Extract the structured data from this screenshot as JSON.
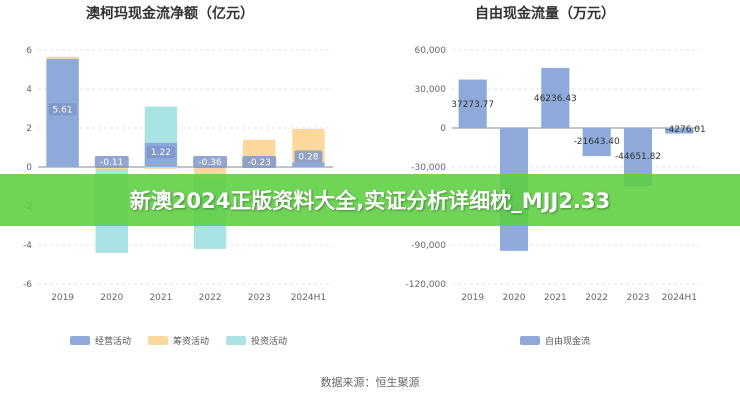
{
  "chart_data": [
    {
      "type": "bar",
      "title": "澳柯玛现金流净额（亿元）",
      "categories": [
        "2019",
        "2020",
        "2021",
        "2022",
        "2023",
        "2024H1"
      ],
      "ylim": [
        -6,
        6
      ],
      "yticks": [
        "6",
        "4",
        "2",
        "0",
        "-2",
        "-4",
        "-6"
      ],
      "grid": true,
      "legend_position": "bottom",
      "net_labels": [
        "5.61",
        "-0.11",
        "1.22",
        "-0.36",
        "-0.23",
        "0.28"
      ],
      "series": [
        {
          "name": "经营活动",
          "color": "#8eaadb",
          "values": [
            5.55,
            0.0,
            1.25,
            0.0,
            0.0,
            0.25
          ]
        },
        {
          "name": "筹资活动",
          "color": "#fcd89c",
          "values": [
            0.1,
            -0.1,
            -0.1,
            -0.6,
            1.4,
            1.7
          ]
        },
        {
          "name": "投资活动",
          "color": "#a9e3e3",
          "values": [
            0.0,
            -4.3,
            1.85,
            -3.6,
            0.0,
            0.0
          ]
        }
      ]
    },
    {
      "type": "bar",
      "title": "自由现金流量（万元）",
      "categories": [
        "2019",
        "2020",
        "2021",
        "2022",
        "2023",
        "2024H1"
      ],
      "ylim": [
        -120000,
        60000
      ],
      "yticks": [
        "60,000",
        "30,000",
        "0",
        "-30,000",
        "-60,000",
        "-90,000",
        "-120,000"
      ],
      "grid": true,
      "legend_position": "bottom",
      "series": [
        {
          "name": "自由现金流",
          "color": "#8eaadb",
          "values": [
            37273.77,
            -94500,
            46236.43,
            -21643.4,
            -44651.82,
            -4276.01
          ]
        }
      ],
      "data_labels": [
        "37273.77",
        "",
        "46236.43",
        "-21643.40",
        "-44651.82",
        "-4276.01"
      ]
    }
  ],
  "banner_text": "新澳2024正版资料大全,实证分析详细枕_MJJ2.33",
  "source_text": "数据来源：恒生聚源"
}
